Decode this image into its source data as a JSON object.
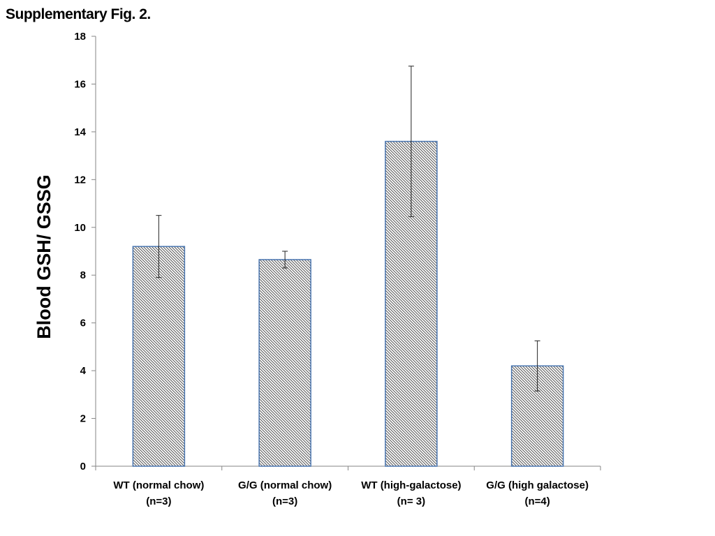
{
  "figure_label": "Supplementary Fig. 2.",
  "chart_data": {
    "type": "bar",
    "title": "",
    "xlabel": "",
    "ylabel": "Blood GSH/ GSSG",
    "ylim": [
      0,
      18
    ],
    "yticks": [
      0,
      2,
      4,
      6,
      8,
      10,
      12,
      14,
      16,
      18
    ],
    "grid": false,
    "legend": "none",
    "categories": [
      [
        "WT (normal chow)",
        "(n=3)"
      ],
      [
        "G/G (normal chow)",
        "(n=3)"
      ],
      [
        "WT (high-galactose)",
        "(n= 3)"
      ],
      [
        "G/G (high galactose)",
        "(n=4)"
      ]
    ],
    "values": [
      9.2,
      8.65,
      13.6,
      4.2
    ],
    "error": [
      1.3,
      0.35,
      3.15,
      1.05
    ],
    "bar_fill": "diagonal-hatch",
    "bar_stroke_color": "#4a76b0",
    "hatch_color": "#555555"
  }
}
